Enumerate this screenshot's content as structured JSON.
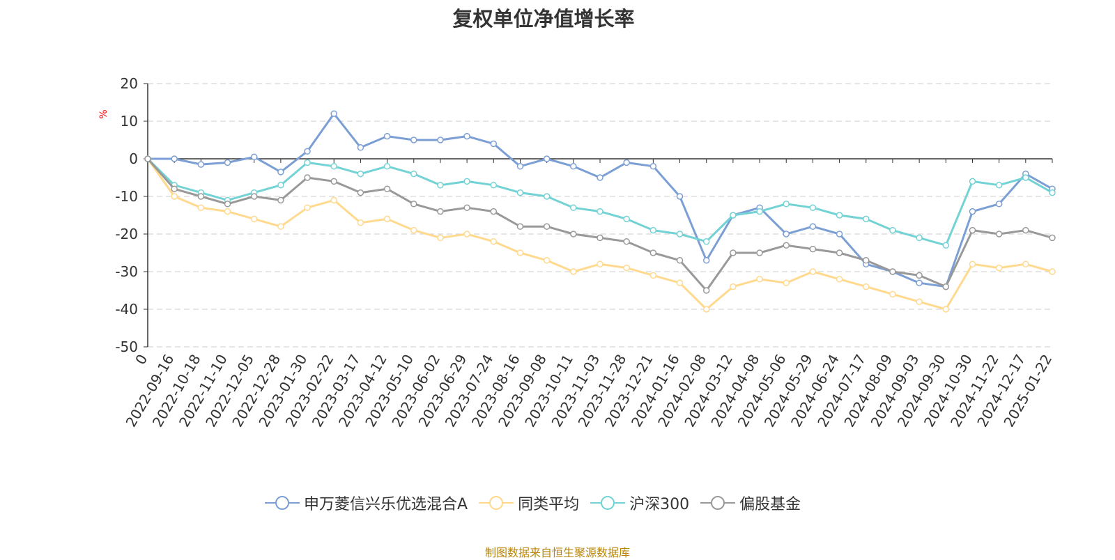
{
  "chart_data": {
    "type": "line",
    "title": "复权单位净值增长率",
    "ylabel": "%",
    "ylim": [
      -50,
      20
    ],
    "yticks": [
      "20",
      "10",
      "0",
      "-10",
      "-20",
      "-30",
      "-40",
      "-50"
    ],
    "x_tick_labels": [
      "0",
      "2022-09-16",
      "2022-10-18",
      "2022-11-10",
      "2022-12-05",
      "2022-12-28",
      "2023-01-30",
      "2023-02-22",
      "2023-03-17",
      "2023-04-12",
      "2023-05-10",
      "2023-06-02",
      "2023-06-29",
      "2023-07-24",
      "2023-08-16",
      "2023-09-08",
      "2023-10-11",
      "2023-11-03",
      "2023-11-28",
      "2023-12-21",
      "2024-01-16",
      "2024-02-08",
      "2024-03-12",
      "2024-04-08",
      "2024-05-06",
      "2024-05-29",
      "2024-06-24",
      "2024-07-17",
      "2024-08-09",
      "2024-09-03",
      "2024-09-30",
      "2024-10-30",
      "2024-11-22",
      "2024-12-17",
      "2025-01-22"
    ],
    "x": [
      0,
      1,
      2,
      3,
      4,
      5,
      6,
      7,
      8,
      9,
      10,
      11,
      12,
      13,
      14,
      15,
      16,
      17,
      18,
      19,
      20,
      21,
      22,
      23,
      24,
      25,
      26,
      27,
      28,
      29,
      30,
      31,
      32,
      33,
      34
    ],
    "series": [
      {
        "name": "申万菱信兴乐优选混合A",
        "color": "#7b9fd4",
        "values": [
          0,
          0,
          -1.5,
          -1,
          0.5,
          -3.5,
          2,
          12,
          3,
          6,
          5,
          5,
          6,
          4,
          -2,
          0,
          -2,
          -5,
          -1,
          -2,
          -10,
          -27,
          -15,
          -13,
          -20,
          -18,
          -20,
          -28,
          -30,
          -33,
          -34,
          -14,
          -12,
          -4,
          -8
        ]
      },
      {
        "name": "同类平均",
        "color": "#ffd98e",
        "values": [
          0,
          -10,
          -13,
          -14,
          -16,
          -18,
          -13,
          -11,
          -17,
          -16,
          -19,
          -21,
          -20,
          -22,
          -25,
          -27,
          -30,
          -28,
          -29,
          -31,
          -33,
          -40,
          -34,
          -32,
          -33,
          -30,
          -32,
          -34,
          -36,
          -38,
          -40,
          -28,
          -29,
          -28,
          -30
        ]
      },
      {
        "name": "沪深300",
        "color": "#73d2d4",
        "values": [
          0,
          -7,
          -9,
          -11,
          -9,
          -7,
          -1,
          -2,
          -4,
          -2,
          -4,
          -7,
          -6,
          -7,
          -9,
          -10,
          -13,
          -14,
          -16,
          -19,
          -20,
          -22,
          -15,
          -14,
          -12,
          -13,
          -15,
          -16,
          -19,
          -21,
          -23,
          -6,
          -7,
          -5,
          -9
        ]
      },
      {
        "name": "偏股基金",
        "color": "#999999",
        "values": [
          0,
          -8,
          -10,
          -12,
          -10,
          -11,
          -5,
          -6,
          -9,
          -8,
          -12,
          -14,
          -13,
          -14,
          -18,
          -18,
          -20,
          -21,
          -22,
          -25,
          -27,
          -35,
          -25,
          -25,
          -23,
          -24,
          -25,
          -27,
          -30,
          -31,
          -34,
          -19,
          -20,
          -19,
          -21
        ]
      }
    ]
  },
  "footer": "制图数据来自恒生聚源数据库"
}
